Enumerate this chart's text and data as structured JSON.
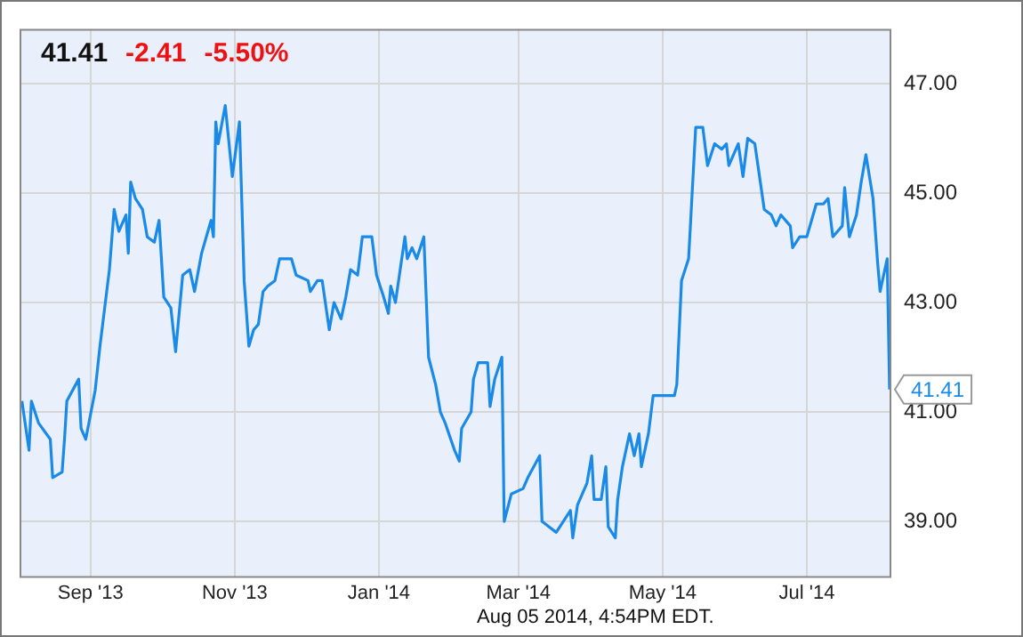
{
  "chart_data": {
    "type": "line",
    "title": "41.41",
    "x": [
      "2013-08-03",
      "2013-08-06",
      "2013-08-07",
      "2013-08-10",
      "2013-08-15",
      "2013-08-16",
      "2013-08-20",
      "2013-08-21",
      "2013-08-22",
      "2013-08-27",
      "2013-08-28",
      "2013-08-30",
      "2013-09-03",
      "2013-09-05",
      "2013-09-07",
      "2013-09-09",
      "2013-09-11",
      "2013-09-13",
      "2013-09-16",
      "2013-09-17",
      "2013-09-18",
      "2013-09-20",
      "2013-09-23",
      "2013-09-25",
      "2013-09-28",
      "2013-09-30",
      "2013-10-02",
      "2013-10-05",
      "2013-10-07",
      "2013-10-10",
      "2013-10-13",
      "2013-10-15",
      "2013-10-18",
      "2013-10-22",
      "2013-10-23",
      "2013-10-24",
      "2013-10-25",
      "2013-10-28",
      "2013-10-31",
      "2013-11-03",
      "2013-11-05",
      "2013-11-07",
      "2013-11-09",
      "2013-11-11",
      "2013-11-13",
      "2013-11-15",
      "2013-11-18",
      "2013-11-20",
      "2013-11-25",
      "2013-11-27",
      "2013-12-02",
      "2013-12-03",
      "2013-12-06",
      "2013-12-08",
      "2013-12-11",
      "2013-12-13",
      "2013-12-16",
      "2013-12-18",
      "2013-12-20",
      "2013-12-23",
      "2013-12-25",
      "2013-12-29",
      "2013-12-31",
      "2014-01-03",
      "2014-01-05",
      "2014-01-06",
      "2014-01-08",
      "2014-01-10",
      "2014-01-12",
      "2014-01-13",
      "2014-01-15",
      "2014-01-17",
      "2014-01-20",
      "2014-01-22",
      "2014-01-25",
      "2014-01-27",
      "2014-01-29",
      "2014-02-02",
      "2014-02-04",
      "2014-02-05",
      "2014-02-09",
      "2014-02-10",
      "2014-02-12",
      "2014-02-16",
      "2014-02-17",
      "2014-02-19",
      "2014-02-22",
      "2014-02-23",
      "2014-02-26",
      "2014-03-03",
      "2014-03-05",
      "2014-03-10",
      "2014-03-11",
      "2014-03-14",
      "2014-03-17",
      "2014-03-20",
      "2014-03-23",
      "2014-03-24",
      "2014-03-26",
      "2014-03-30",
      "2014-04-01",
      "2014-04-02",
      "2014-04-05",
      "2014-04-07",
      "2014-04-08",
      "2014-04-11",
      "2014-04-12",
      "2014-04-14",
      "2014-04-17",
      "2014-04-19",
      "2014-04-21",
      "2014-04-22",
      "2014-04-25",
      "2014-04-27",
      "2014-05-02",
      "2014-05-06",
      "2014-05-07",
      "2014-05-09",
      "2014-05-12",
      "2014-05-13",
      "2014-05-15",
      "2014-05-18",
      "2014-05-20",
      "2014-05-23",
      "2014-05-26",
      "2014-05-28",
      "2014-05-29",
      "2014-06-02",
      "2014-06-04",
      "2014-06-06",
      "2014-06-09",
      "2014-06-13",
      "2014-06-16",
      "2014-06-18",
      "2014-06-20",
      "2014-06-24",
      "2014-06-25",
      "2014-06-28",
      "2014-07-01",
      "2014-07-03",
      "2014-07-05",
      "2014-07-08",
      "2014-07-10",
      "2014-07-12",
      "2014-07-16",
      "2014-07-17",
      "2014-07-19",
      "2014-07-22",
      "2014-07-24",
      "2014-07-26",
      "2014-07-29",
      "2014-07-31",
      "2014-08-01",
      "2014-08-04",
      "2014-08-05"
    ],
    "series": [
      {
        "color": "#1a8ae8",
        "values": [
          41.2,
          40.3,
          41.2,
          40.8,
          40.5,
          39.8,
          39.9,
          40.5,
          41.2,
          41.6,
          40.7,
          40.5,
          41.4,
          42.2,
          42.9,
          43.6,
          44.7,
          44.3,
          44.6,
          43.9,
          45.2,
          44.9,
          44.7,
          44.2,
          44.1,
          44.5,
          43.1,
          42.9,
          42.1,
          43.5,
          43.6,
          43.2,
          43.9,
          44.5,
          44.2,
          46.3,
          45.9,
          46.6,
          45.3,
          46.3,
          43.4,
          42.2,
          42.5,
          42.6,
          43.2,
          43.3,
          43.4,
          43.8,
          43.8,
          43.5,
          43.4,
          43.2,
          43.4,
          43.4,
          42.5,
          43.0,
          42.7,
          43.1,
          43.6,
          43.5,
          44.2,
          44.2,
          43.5,
          43.1,
          42.8,
          43.3,
          43.0,
          43.6,
          44.2,
          43.8,
          44.0,
          43.8,
          44.2,
          42.0,
          41.5,
          41.0,
          40.8,
          40.3,
          40.1,
          40.7,
          41.0,
          41.6,
          41.9,
          41.9,
          41.1,
          41.6,
          42.0,
          39.0,
          39.5,
          39.6,
          39.8,
          40.2,
          39.0,
          38.9,
          38.8,
          39.0,
          39.2,
          38.7,
          39.3,
          39.7,
          40.2,
          39.4,
          39.4,
          40.0,
          38.9,
          38.7,
          39.4,
          40.0,
          40.6,
          40.2,
          40.6,
          40.0,
          40.6,
          41.3,
          41.3,
          41.3,
          41.5,
          43.4,
          43.8,
          44.6,
          46.2,
          46.2,
          45.5,
          45.9,
          45.8,
          45.9,
          45.5,
          45.9,
          45.3,
          46.0,
          45.9,
          44.7,
          44.6,
          44.4,
          44.6,
          44.4,
          44.0,
          44.2,
          44.2,
          44.5,
          44.8,
          44.8,
          44.9,
          44.2,
          44.4,
          45.1,
          44.2,
          44.6,
          45.2,
          45.7,
          44.9,
          43.7,
          43.2,
          43.8,
          41.41
        ]
      }
    ],
    "xlim": [
      "2013-08-02",
      "2014-08-05"
    ],
    "xticks": [
      {
        "value": "2013-09-01",
        "label": "Sep '13"
      },
      {
        "value": "2013-11-01",
        "label": "Nov '13"
      },
      {
        "value": "2014-01-01",
        "label": "Jan '14"
      },
      {
        "value": "2014-03-01",
        "label": "Mar '14"
      },
      {
        "value": "2014-05-01",
        "label": "May '14"
      },
      {
        "value": "2014-07-01",
        "label": "Jul '14"
      }
    ],
    "ylim": [
      38,
      48
    ],
    "yticks": [
      {
        "value": 39,
        "label": "39.00"
      },
      {
        "value": 41,
        "label": "41.00"
      },
      {
        "value": 43,
        "label": "43.00"
      },
      {
        "value": 45,
        "label": "45.00"
      },
      {
        "value": 47,
        "label": "47.00"
      }
    ],
    "grid": true,
    "legend": false,
    "marker": "none",
    "line_style": "solid",
    "annotations": [
      {
        "text": "41.41",
        "x": "2014-08-05",
        "y": 41.41
      },
      "-2.41",
      "-5.50%",
      "Aug 05 2014, 4:54PM EDT."
    ]
  }
}
